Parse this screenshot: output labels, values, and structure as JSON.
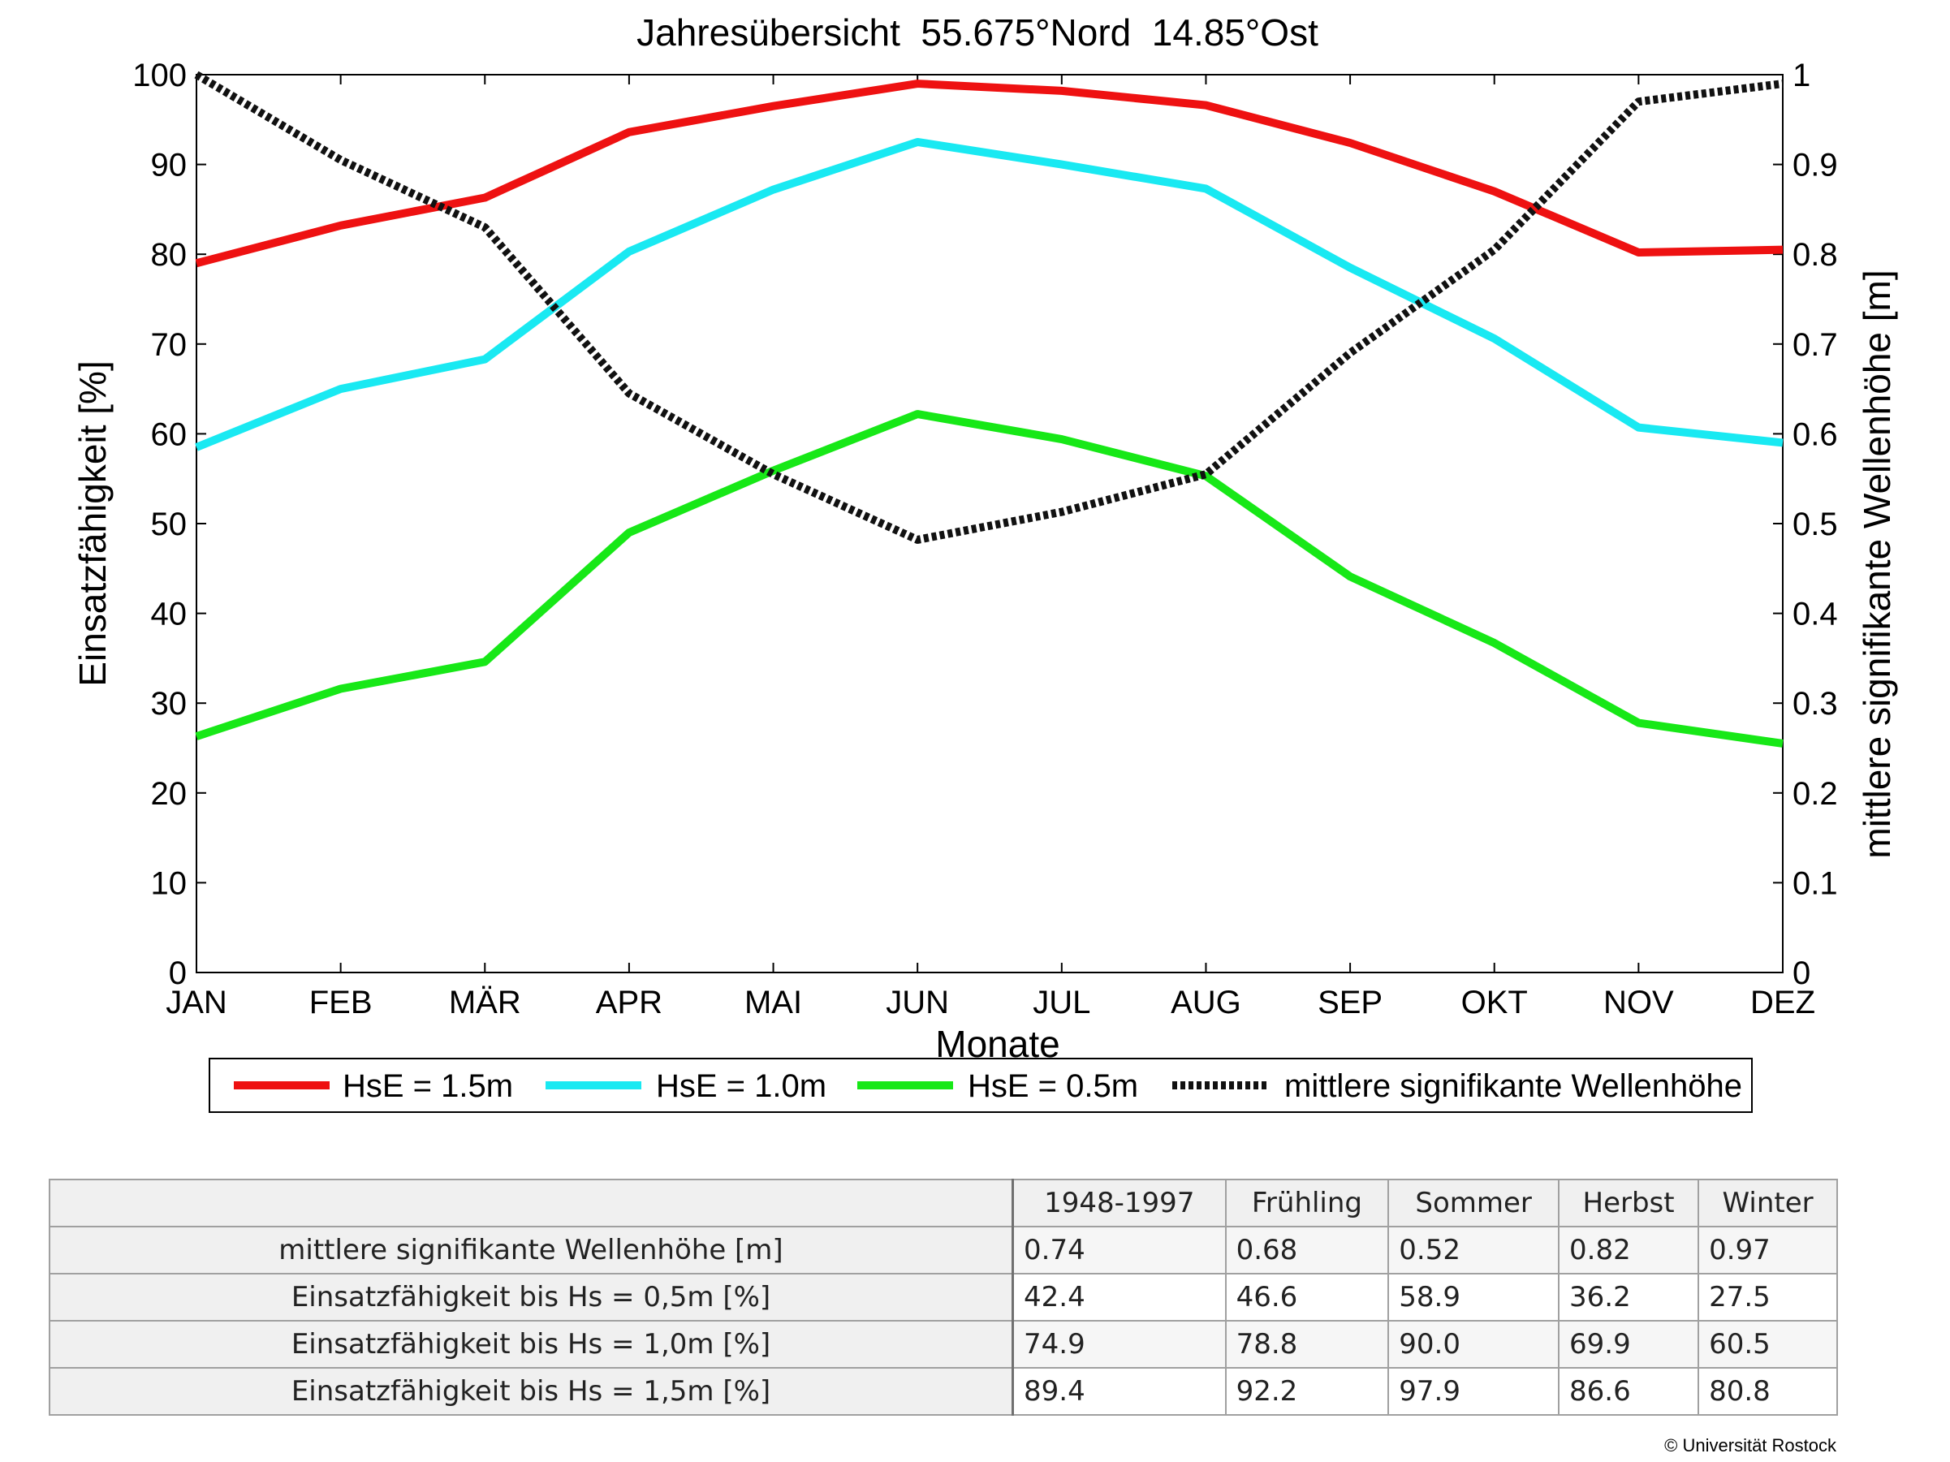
{
  "chart_data": {
    "type": "line",
    "title": "Jahresübersicht  55.675°Nord  14.85°Ost",
    "xlabel": "Monate",
    "ylabel": "Einsatzfähigkeit [%]",
    "y2label": "mittlere signifikante Wellenhöhe [m]",
    "categories": [
      "JAN",
      "FEB",
      "MÄR",
      "APR",
      "MAI",
      "JUN",
      "JUL",
      "AUG",
      "SEP",
      "OKT",
      "NOV",
      "DEZ"
    ],
    "ylim": [
      0,
      100
    ],
    "yticks": [
      "0",
      "10",
      "20",
      "30",
      "40",
      "50",
      "60",
      "70",
      "80",
      "90",
      "100"
    ],
    "y2lim": [
      0,
      1
    ],
    "y2ticks": [
      "0",
      "0.1",
      "0.2",
      "0.3",
      "0.4",
      "0.5",
      "0.6",
      "0.7",
      "0.8",
      "0.9",
      "1"
    ],
    "grid": false,
    "legend_position": "bottom",
    "series": [
      {
        "name": "HsE = 1.5m",
        "axis": "left",
        "color": "#ee1111",
        "style": "solid",
        "values": [
          79.0,
          83.2,
          86.3,
          93.6,
          96.5,
          99.0,
          98.2,
          96.6,
          92.4,
          87.0,
          80.2,
          80.5
        ]
      },
      {
        "name": "HsE = 1.0m",
        "axis": "left",
        "color": "#19e9f2",
        "style": "solid",
        "values": [
          58.5,
          65.0,
          68.3,
          80.3,
          87.2,
          92.5,
          90.0,
          87.3,
          78.5,
          70.6,
          60.7,
          59.0
        ]
      },
      {
        "name": "HsE = 0.5m",
        "axis": "left",
        "color": "#17e817",
        "style": "solid",
        "values": [
          26.3,
          31.6,
          34.6,
          49.0,
          55.9,
          62.2,
          59.4,
          55.3,
          44.1,
          36.7,
          27.8,
          25.5
        ]
      },
      {
        "name": "mittlere signifikante Wellenhöhe",
        "axis": "right",
        "color": "#111111",
        "style": "dotted",
        "values": [
          1.0,
          0.905,
          0.83,
          0.645,
          0.555,
          0.482,
          0.513,
          0.555,
          0.69,
          0.805,
          0.97,
          0.99
        ]
      }
    ]
  },
  "table": {
    "columns": [
      "1948-1997",
      "Frühling",
      "Sommer",
      "Herbst",
      "Winter"
    ],
    "rows": [
      {
        "label": "mittlere signifikante Wellenhöhe [m]",
        "values": [
          "0.74",
          "0.68",
          "0.52",
          "0.82",
          "0.97"
        ]
      },
      {
        "label": "Einsatzfähigkeit bis Hs = 0,5m [%]",
        "values": [
          "42.4",
          "46.6",
          "58.9",
          "36.2",
          "27.5"
        ]
      },
      {
        "label": "Einsatzfähigkeit bis Hs = 1,0m [%]",
        "values": [
          "74.9",
          "78.8",
          "90.0",
          "69.9",
          "60.5"
        ]
      },
      {
        "label": "Einsatzfähigkeit bis Hs = 1,5m [%]",
        "values": [
          "89.4",
          "92.2",
          "97.9",
          "86.6",
          "80.8"
        ]
      }
    ]
  },
  "copyright": "© Universität Rostock"
}
